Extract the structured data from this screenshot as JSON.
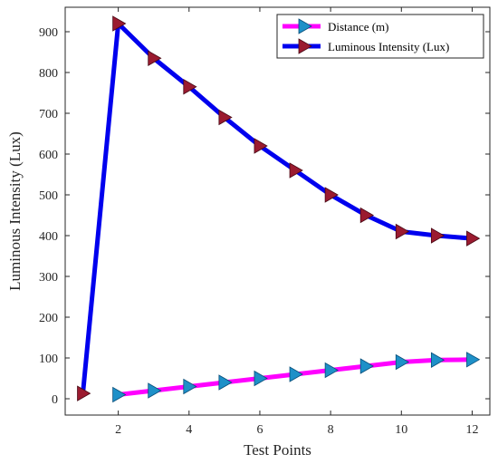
{
  "chart_data": {
    "type": "line",
    "title": "",
    "xlabel": "Test Points",
    "ylabel": "Luminous Intensity (Lux)",
    "xlim": [
      0.5,
      12.5
    ],
    "ylim": [
      -40,
      960
    ],
    "xticks": [
      2,
      4,
      6,
      8,
      10,
      12
    ],
    "yticks": [
      0,
      100,
      200,
      300,
      400,
      500,
      600,
      700,
      800,
      900
    ],
    "grid": false,
    "legend_position": "top-right",
    "series": [
      {
        "name": "Distance (m)",
        "color": "#ff00ff",
        "marker": "triangle-right",
        "marker_color": "#1e90c8",
        "x": [
          2,
          3,
          4,
          5,
          6,
          7,
          8,
          9,
          10,
          11,
          12
        ],
        "values": [
          10,
          20,
          30,
          40,
          50,
          60,
          70,
          80,
          90,
          95,
          96
        ]
      },
      {
        "name": "Luminous Intensity (Lux)",
        "color": "#0000ee",
        "marker": "triangle-right",
        "marker_color": "#9b1b30",
        "x": [
          1,
          2,
          3,
          4,
          5,
          6,
          7,
          8,
          9,
          10,
          11,
          12
        ],
        "values": [
          13,
          920,
          835,
          765,
          690,
          620,
          560,
          500,
          450,
          410,
          400,
          393
        ]
      }
    ]
  }
}
